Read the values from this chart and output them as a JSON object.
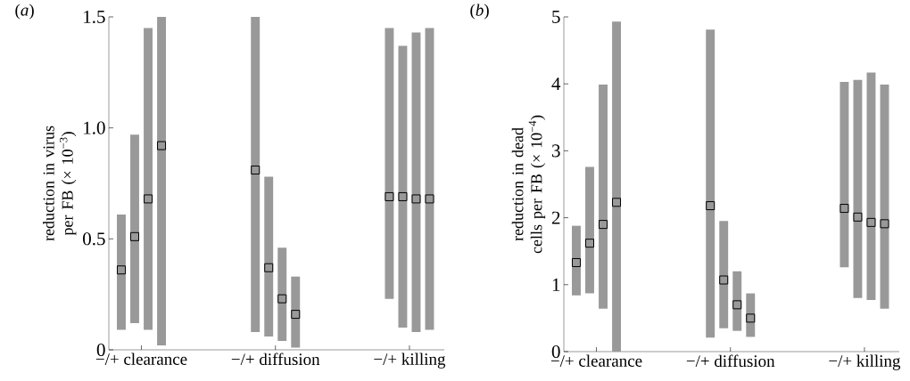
{
  "chart_data": [
    {
      "type": "bar",
      "title": "(*a*)",
      "ylabel": "reduction in virus per FB (× 10$^{−3}$)",
      "categories": [
        "−/+ clearance",
        "−/+ diffusion",
        "−/+ killing"
      ],
      "ylim": [
        0,
        1.5
      ],
      "yticks": [
        0,
        0.5,
        {
          "value": 1,
          "label": "1.0"
        },
        1.5
      ],
      "series": [
        {
          "color": "#999999",
          "base": [
            0.09,
            0.08,
            0.23
          ],
          "values": [
            0.52,
            1.42,
            1.22
          ]
        },
        {
          "color": "#999999",
          "base": [
            0.12,
            0.06,
            0.1
          ],
          "values": [
            0.85,
            0.72,
            1.27
          ]
        },
        {
          "color": "#999999",
          "base": [
            0.09,
            0.04,
            0.08
          ],
          "values": [
            1.36,
            0.42,
            1.35
          ]
        },
        {
          "color": "#999999",
          "base": [
            0.02,
            0.01,
            0.09
          ],
          "values": [
            1.48,
            0.32,
            1.36
          ]
        },
        {
          "type": "scatter",
          "marker": "square",
          "color": "#000000",
          "values": [
            0.36,
            0.81,
            0.69
          ]
        },
        {
          "type": "scatter",
          "marker": "square",
          "color": "#000000",
          "values": [
            0.51,
            0.37,
            0.69
          ]
        },
        {
          "type": "scatter",
          "marker": "square",
          "color": "#000000",
          "values": [
            0.68,
            0.23,
            0.68
          ]
        },
        {
          "type": "scatter",
          "marker": "square",
          "color": "#000000",
          "values": [
            0.92,
            0.16,
            0.68
          ]
        }
      ]
    },
    {
      "type": "bar",
      "title": "(*b*)",
      "ylabel": "reduction in dead cells per FB (× 10$^{−4}$)",
      "categories": [
        "−/+ clearance",
        "−/+ diffusion",
        "−/+ killing"
      ],
      "ylim": [
        0,
        5
      ],
      "yticks": [
        0,
        1,
        2,
        3,
        4,
        5
      ],
      "series": [
        {
          "color": "#999999",
          "base": [
            0.84,
            0.21,
            1.26
          ],
          "values": [
            1.04,
            4.6,
            2.77
          ]
        },
        {
          "color": "#999999",
          "base": [
            0.87,
            0.35,
            0.8
          ],
          "values": [
            1.89,
            1.6,
            3.26
          ]
        },
        {
          "color": "#999999",
          "base": [
            0.64,
            0.31,
            0.77
          ],
          "values": [
            3.35,
            0.89,
            3.4
          ]
        },
        {
          "color": "#999999",
          "base": [
            0,
            0.22,
            0.64
          ],
          "values": [
            4.93,
            0.65,
            3.35
          ]
        },
        {
          "type": "scatter",
          "marker": "square",
          "color": "#000000",
          "values": [
            1.33,
            2.18,
            2.14
          ]
        },
        {
          "type": "scatter",
          "marker": "square",
          "color": "#000000",
          "values": [
            1.62,
            1.07,
            2.01
          ]
        },
        {
          "type": "scatter",
          "marker": "square",
          "color": "#000000",
          "values": [
            1.9,
            0.7,
            1.93
          ]
        },
        {
          "type": "scatter",
          "marker": "square",
          "color": "#000000",
          "values": [
            2.23,
            0.5,
            1.91
          ]
        }
      ]
    }
  ]
}
